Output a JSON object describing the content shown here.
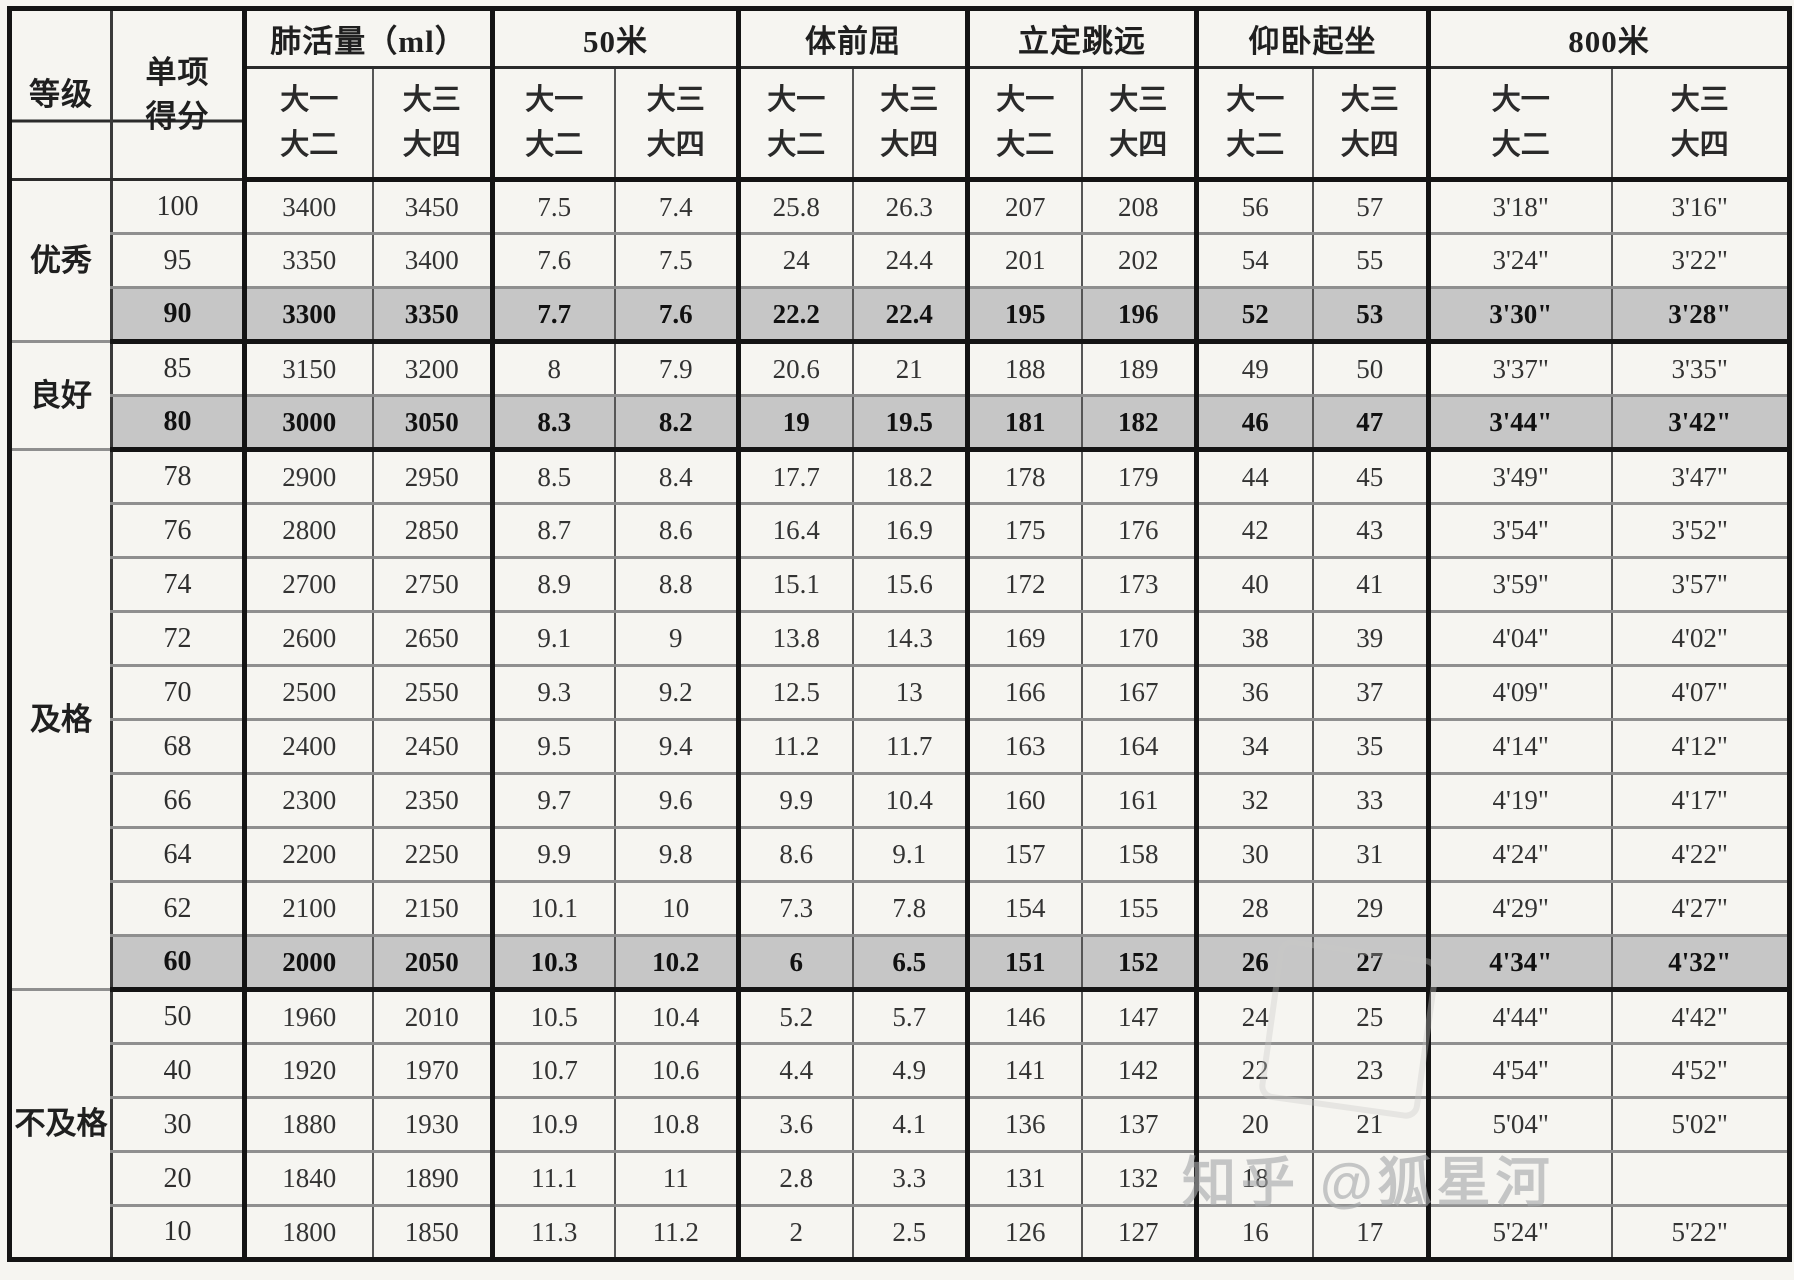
{
  "header": {
    "grade_label": "等级",
    "score_label": "单项\n得分",
    "sub_col_a": "大一\n大二",
    "sub_col_b": "大三\n大四",
    "events": [
      "肺活量（ml）",
      "50米",
      "体前屈",
      "立定跳远",
      "仰卧起坐",
      "800米"
    ]
  },
  "watermark": {
    "text": "知乎 @狐星河"
  },
  "groups": [
    {
      "label": "优秀",
      "rows": [
        {
          "score": "100",
          "highlight": false,
          "cells": [
            "3400",
            "3450",
            "7.5",
            "7.4",
            "25.8",
            "26.3",
            "207",
            "208",
            "56",
            "57",
            "3'18\"",
            "3'16\""
          ]
        },
        {
          "score": "95",
          "highlight": false,
          "cells": [
            "3350",
            "3400",
            "7.6",
            "7.5",
            "24",
            "24.4",
            "201",
            "202",
            "54",
            "55",
            "3'24\"",
            "3'22\""
          ]
        },
        {
          "score": "90",
          "highlight": true,
          "cells": [
            "3300",
            "3350",
            "7.7",
            "7.6",
            "22.2",
            "22.4",
            "195",
            "196",
            "52",
            "53",
            "3'30\"",
            "3'28\""
          ]
        }
      ]
    },
    {
      "label": "良好",
      "rows": [
        {
          "score": "85",
          "highlight": false,
          "cells": [
            "3150",
            "3200",
            "8",
            "7.9",
            "20.6",
            "21",
            "188",
            "189",
            "49",
            "50",
            "3'37\"",
            "3'35\""
          ]
        },
        {
          "score": "80",
          "highlight": true,
          "cells": [
            "3000",
            "3050",
            "8.3",
            "8.2",
            "19",
            "19.5",
            "181",
            "182",
            "46",
            "47",
            "3'44\"",
            "3'42\""
          ]
        }
      ]
    },
    {
      "label": "及格",
      "rows": [
        {
          "score": "78",
          "highlight": false,
          "cells": [
            "2900",
            "2950",
            "8.5",
            "8.4",
            "17.7",
            "18.2",
            "178",
            "179",
            "44",
            "45",
            "3'49\"",
            "3'47\""
          ]
        },
        {
          "score": "76",
          "highlight": false,
          "cells": [
            "2800",
            "2850",
            "8.7",
            "8.6",
            "16.4",
            "16.9",
            "175",
            "176",
            "42",
            "43",
            "3'54\"",
            "3'52\""
          ]
        },
        {
          "score": "74",
          "highlight": false,
          "cells": [
            "2700",
            "2750",
            "8.9",
            "8.8",
            "15.1",
            "15.6",
            "172",
            "173",
            "40",
            "41",
            "3'59\"",
            "3'57\""
          ]
        },
        {
          "score": "72",
          "highlight": false,
          "cells": [
            "2600",
            "2650",
            "9.1",
            "9",
            "13.8",
            "14.3",
            "169",
            "170",
            "38",
            "39",
            "4'04\"",
            "4'02\""
          ]
        },
        {
          "score": "70",
          "highlight": false,
          "cells": [
            "2500",
            "2550",
            "9.3",
            "9.2",
            "12.5",
            "13",
            "166",
            "167",
            "36",
            "37",
            "4'09\"",
            "4'07\""
          ]
        },
        {
          "score": "68",
          "highlight": false,
          "cells": [
            "2400",
            "2450",
            "9.5",
            "9.4",
            "11.2",
            "11.7",
            "163",
            "164",
            "34",
            "35",
            "4'14\"",
            "4'12\""
          ]
        },
        {
          "score": "66",
          "highlight": false,
          "cells": [
            "2300",
            "2350",
            "9.7",
            "9.6",
            "9.9",
            "10.4",
            "160",
            "161",
            "32",
            "33",
            "4'19\"",
            "4'17\""
          ]
        },
        {
          "score": "64",
          "highlight": false,
          "cells": [
            "2200",
            "2250",
            "9.9",
            "9.8",
            "8.6",
            "9.1",
            "157",
            "158",
            "30",
            "31",
            "4'24\"",
            "4'22\""
          ]
        },
        {
          "score": "62",
          "highlight": false,
          "cells": [
            "2100",
            "2150",
            "10.1",
            "10",
            "7.3",
            "7.8",
            "154",
            "155",
            "28",
            "29",
            "4'29\"",
            "4'27\""
          ]
        },
        {
          "score": "60",
          "highlight": true,
          "cells": [
            "2000",
            "2050",
            "10.3",
            "10.2",
            "6",
            "6.5",
            "151",
            "152",
            "26",
            "27",
            "4'34\"",
            "4'32\""
          ]
        }
      ]
    },
    {
      "label": "不及格",
      "rows": [
        {
          "score": "50",
          "highlight": false,
          "cells": [
            "1960",
            "2010",
            "10.5",
            "10.4",
            "5.2",
            "5.7",
            "146",
            "147",
            "24",
            "25",
            "4'44\"",
            "4'42\""
          ]
        },
        {
          "score": "40",
          "highlight": false,
          "cells": [
            "1920",
            "1970",
            "10.7",
            "10.6",
            "4.4",
            "4.9",
            "141",
            "142",
            "22",
            "23",
            "4'54\"",
            "4'52\""
          ]
        },
        {
          "score": "30",
          "highlight": false,
          "cells": [
            "1880",
            "1930",
            "10.9",
            "10.8",
            "3.6",
            "4.1",
            "136",
            "137",
            "20",
            "21",
            "5'04\"",
            "5'02\""
          ]
        },
        {
          "score": "20",
          "highlight": false,
          "cells": [
            "1840",
            "1890",
            "11.1",
            "11",
            "2.8",
            "3.3",
            "131",
            "132",
            "18",
            "",
            "",
            ""
          ]
        },
        {
          "score": "10",
          "highlight": false,
          "cells": [
            "1800",
            "1850",
            "11.3",
            "11.2",
            "2",
            "2.5",
            "126",
            "127",
            "16",
            "17",
            "5'24\"",
            "5'22\""
          ]
        }
      ]
    }
  ]
}
